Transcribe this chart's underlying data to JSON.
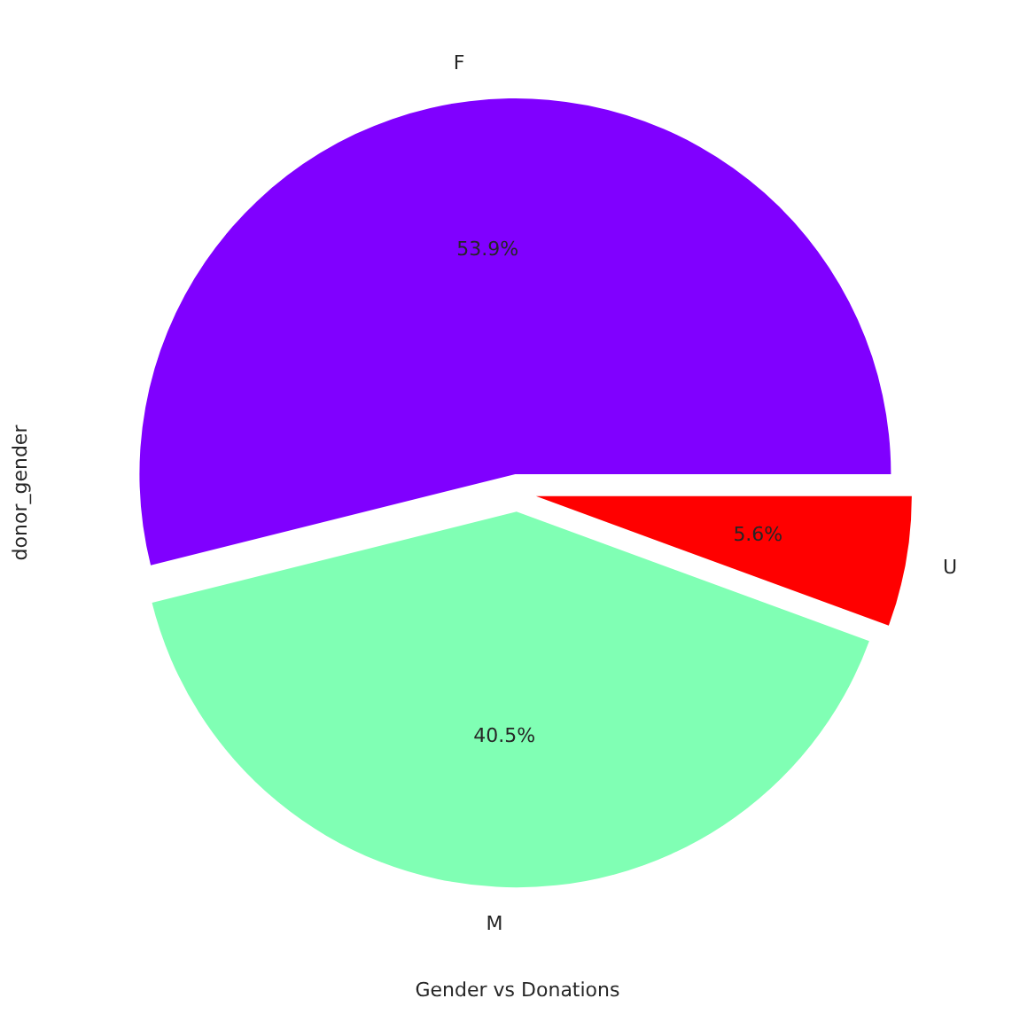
{
  "chart_data": {
    "type": "pie",
    "xlabel": "Gender vs Donations",
    "ylabel": "donor_gender",
    "categories": [
      "F",
      "M",
      "U"
    ],
    "values": [
      53.9,
      40.5,
      5.6
    ],
    "colors": [
      "#8000ff",
      "#80ffb4",
      "#ff0000"
    ],
    "value_labels": [
      "53.9%",
      "40.5%",
      "5.6%"
    ]
  }
}
